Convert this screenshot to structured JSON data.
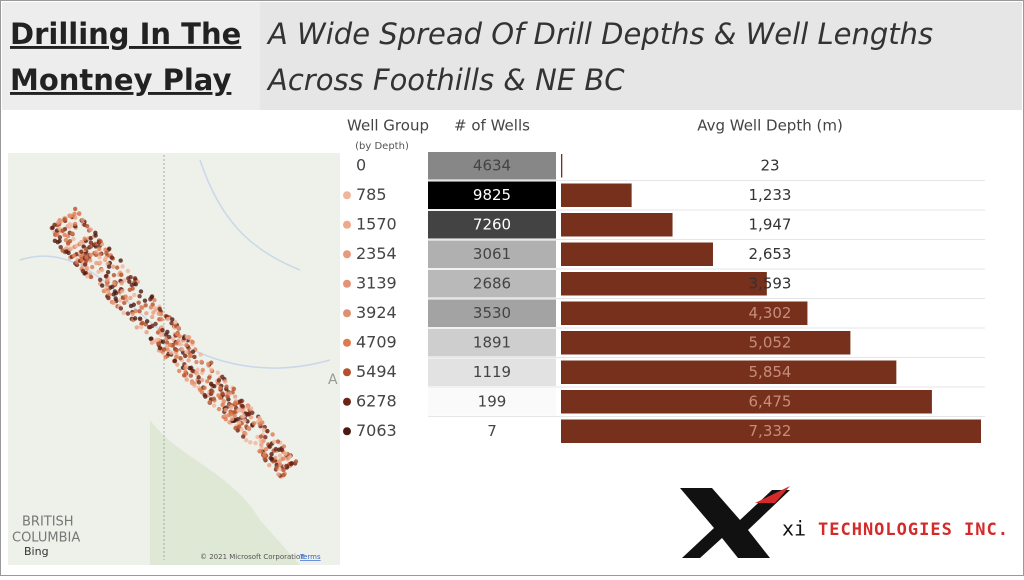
{
  "header": {
    "title_line1": "Drilling In The",
    "title_line2": "Montney Play",
    "subtitle_line1": "A Wide Spread Of Drill Depths & Well Lengths",
    "subtitle_line2": "Across Foothills & NE BC"
  },
  "table": {
    "group_heading": "Well Group",
    "group_subheading": "(by Depth)",
    "wells_heading": "# of Wells",
    "wells": [
      4634,
      9825,
      7260,
      3061,
      2686,
      3530,
      1891,
      1119,
      199,
      7
    ],
    "dot_colors": [
      null,
      "#f2b59c",
      "#eea88c",
      "#e89b7c",
      "#e39378",
      "#e09070",
      "#dd7a50",
      "#b5502c",
      "#6e2414",
      "#4a1a10"
    ]
  },
  "chart_data": {
    "type": "bar",
    "title": "Avg Well Depth (m)",
    "categories": [
      "0",
      "785",
      "1570",
      "2354",
      "3139",
      "3924",
      "4709",
      "5494",
      "6278",
      "7063"
    ],
    "values": [
      23,
      1233,
      1947,
      2653,
      3593,
      4302,
      5052,
      5854,
      6475,
      7332
    ],
    "value_labels": [
      "23",
      "1,233",
      "1,947",
      "2,653",
      "3,593",
      "4,302",
      "5,052",
      "5,854",
      "6,475",
      "7,332"
    ],
    "color": "#76301c"
  },
  "map": {
    "region_line1": "BRITISH",
    "region_line2": "COLUMBIA",
    "bing": "Bing",
    "attribution": "© 2021 Microsoft Corporation",
    "terms": "Terms",
    "edge_label": "A"
  },
  "logo": {
    "prefix": "xi",
    "name": "TECHNOLOGIES INC."
  }
}
